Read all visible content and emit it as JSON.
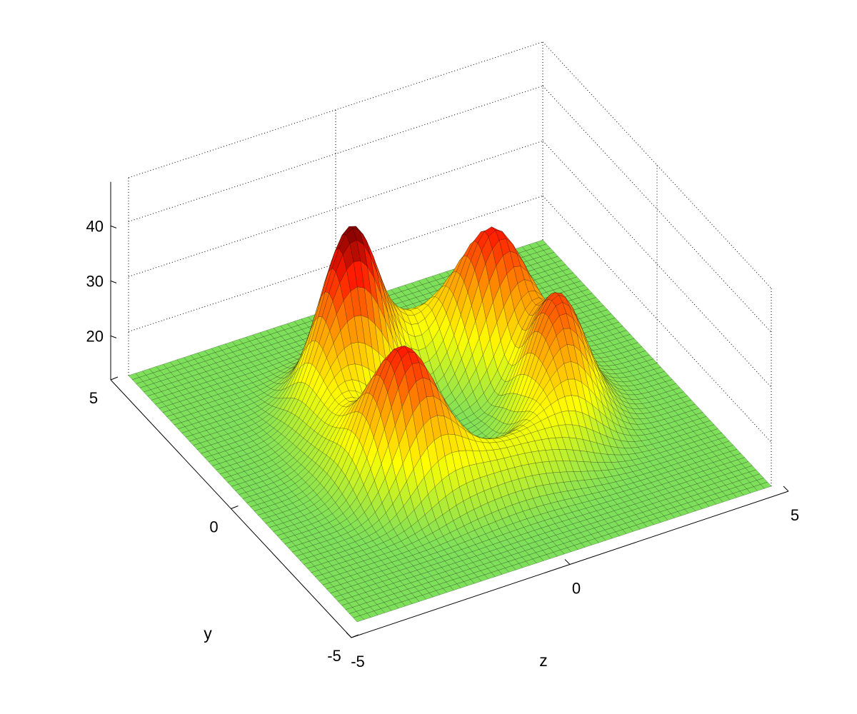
{
  "chart_data": {
    "type": "surface",
    "title": "",
    "xlabel": "z",
    "ylabel": "y",
    "zlabel": "",
    "xlim": [
      -5,
      5
    ],
    "ylim": [
      -5,
      5
    ],
    "zlim": [
      12,
      48
    ],
    "floor_value": 12,
    "x_ticks": [
      -5,
      0,
      5
    ],
    "y_ticks": [
      -5,
      0,
      5
    ],
    "z_ticks": [
      20,
      30,
      40
    ],
    "x_tick_labels": [
      "-5",
      "0",
      "5"
    ],
    "y_tick_labels": [
      "-5",
      "0",
      "5"
    ],
    "z_tick_labels": [
      "20",
      "30",
      "40"
    ],
    "grid": true,
    "colormap": [
      "#7ee05a",
      "#ffff00",
      "#ff9900",
      "#ff1a00",
      "#7a0000"
    ],
    "ring": {
      "radius": 2.3,
      "width": 0.9,
      "center": [
        0,
        0
      ]
    },
    "peaks": [
      {
        "x": -1.2,
        "y": 1.7,
        "height": 44
      },
      {
        "x": 1.8,
        "y": 1.4,
        "height": 38
      },
      {
        "x": 2.6,
        "y": -1.0,
        "height": 35
      },
      {
        "x": -1.9,
        "y": -1.4,
        "height": 38
      }
    ],
    "mesh_resolution": 60
  }
}
